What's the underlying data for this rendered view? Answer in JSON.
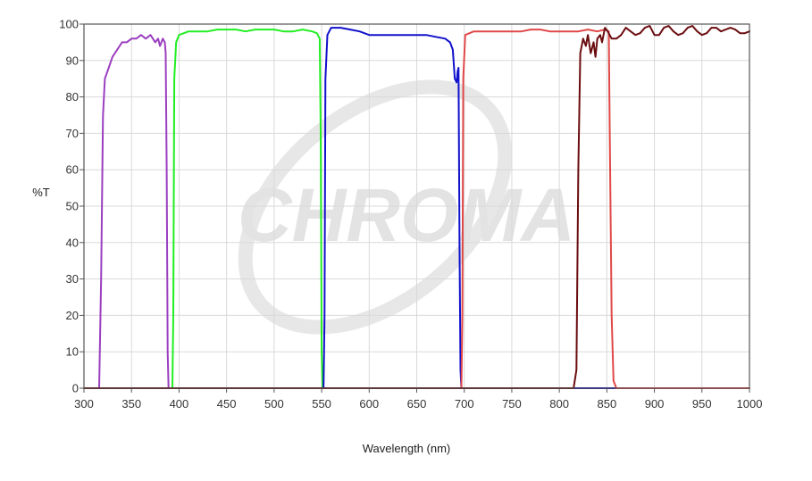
{
  "chart_data": {
    "type": "line",
    "title": "",
    "xlabel": "Wavelength (nm)",
    "ylabel": "%T",
    "xlim": [
      300,
      1000
    ],
    "ylim": [
      0,
      100
    ],
    "x_ticks": [
      300,
      350,
      400,
      450,
      500,
      550,
      600,
      650,
      700,
      750,
      800,
      850,
      900,
      950,
      1000
    ],
    "y_ticks": [
      0,
      10,
      20,
      30,
      40,
      50,
      60,
      70,
      80,
      90,
      100
    ],
    "grid": true,
    "legend": "none",
    "watermark": "CHROMA",
    "series": [
      {
        "color": "#9b3fc0",
        "points": [
          [
            300,
            0
          ],
          [
            316,
            0
          ],
          [
            318,
            30
          ],
          [
            320,
            75
          ],
          [
            322,
            85
          ],
          [
            326,
            88
          ],
          [
            330,
            91
          ],
          [
            335,
            93
          ],
          [
            340,
            95
          ],
          [
            345,
            95
          ],
          [
            350,
            96
          ],
          [
            355,
            96
          ],
          [
            360,
            97
          ],
          [
            365,
            96
          ],
          [
            370,
            97
          ],
          [
            375,
            95
          ],
          [
            378,
            96
          ],
          [
            380,
            94
          ],
          [
            383,
            96
          ],
          [
            385,
            95
          ],
          [
            386,
            92
          ],
          [
            387,
            60
          ],
          [
            388,
            10
          ],
          [
            389,
            0
          ],
          [
            550,
            0
          ]
        ]
      },
      {
        "color": "#22ee22",
        "points": [
          [
            380,
            0
          ],
          [
            393,
            0
          ],
          [
            394,
            20
          ],
          [
            395,
            85
          ],
          [
            397,
            95
          ],
          [
            400,
            97
          ],
          [
            410,
            98
          ],
          [
            420,
            98
          ],
          [
            430,
            98
          ],
          [
            440,
            98.5
          ],
          [
            450,
            98.5
          ],
          [
            460,
            98.5
          ],
          [
            470,
            98
          ],
          [
            480,
            98.5
          ],
          [
            490,
            98.5
          ],
          [
            500,
            98.5
          ],
          [
            510,
            98
          ],
          [
            520,
            98
          ],
          [
            530,
            98.5
          ],
          [
            540,
            98
          ],
          [
            545,
            97.5
          ],
          [
            548,
            96
          ],
          [
            549,
            70
          ],
          [
            550,
            10
          ],
          [
            551,
            0
          ],
          [
            700,
            0
          ]
        ]
      },
      {
        "color": "#1111cc",
        "points": [
          [
            400,
            0
          ],
          [
            552,
            0
          ],
          [
            553,
            20
          ],
          [
            554,
            85
          ],
          [
            556,
            97
          ],
          [
            560,
            99
          ],
          [
            570,
            99
          ],
          [
            580,
            98.5
          ],
          [
            590,
            98
          ],
          [
            600,
            97
          ],
          [
            610,
            97
          ],
          [
            620,
            97
          ],
          [
            630,
            97
          ],
          [
            640,
            97
          ],
          [
            650,
            97
          ],
          [
            660,
            97
          ],
          [
            670,
            96.5
          ],
          [
            680,
            96
          ],
          [
            685,
            95
          ],
          [
            688,
            93
          ],
          [
            690,
            85
          ],
          [
            692,
            84
          ],
          [
            693,
            87
          ],
          [
            694,
            88
          ],
          [
            695,
            40
          ],
          [
            696,
            5
          ],
          [
            697,
            0
          ],
          [
            860,
            0
          ]
        ]
      },
      {
        "color": "#e04848",
        "points": [
          [
            650,
            0
          ],
          [
            697,
            0
          ],
          [
            698,
            20
          ],
          [
            699,
            85
          ],
          [
            701,
            97
          ],
          [
            710,
            98
          ],
          [
            720,
            98
          ],
          [
            730,
            98
          ],
          [
            740,
            98
          ],
          [
            750,
            98
          ],
          [
            760,
            98
          ],
          [
            770,
            98.5
          ],
          [
            780,
            98.5
          ],
          [
            790,
            98
          ],
          [
            800,
            98
          ],
          [
            810,
            98
          ],
          [
            820,
            98
          ],
          [
            830,
            98.5
          ],
          [
            840,
            98
          ],
          [
            848,
            98.5
          ],
          [
            852,
            98
          ],
          [
            853,
            70
          ],
          [
            855,
            20
          ],
          [
            857,
            2
          ],
          [
            860,
            0
          ],
          [
            1000,
            0
          ]
        ]
      },
      {
        "color": "#6b0d10",
        "points": [
          [
            300,
            0
          ],
          [
            750,
            0
          ],
          [
            815,
            0
          ],
          [
            818,
            5
          ],
          [
            820,
            60
          ],
          [
            822,
            92
          ],
          [
            825,
            96
          ],
          [
            828,
            94
          ],
          [
            830,
            97
          ],
          [
            833,
            92
          ],
          [
            836,
            95
          ],
          [
            838,
            91
          ],
          [
            840,
            96
          ],
          [
            843,
            97
          ],
          [
            845,
            95
          ],
          [
            848,
            99
          ],
          [
            851,
            98
          ],
          [
            855,
            96
          ],
          [
            860,
            96
          ],
          [
            865,
            97
          ],
          [
            870,
            99
          ],
          [
            875,
            98
          ],
          [
            880,
            97
          ],
          [
            885,
            97.5
          ],
          [
            890,
            99
          ],
          [
            895,
            99.5
          ],
          [
            900,
            97
          ],
          [
            905,
            97
          ],
          [
            910,
            99
          ],
          [
            915,
            99.5
          ],
          [
            920,
            98
          ],
          [
            925,
            97
          ],
          [
            930,
            97.5
          ],
          [
            935,
            99
          ],
          [
            940,
            99.5
          ],
          [
            945,
            98
          ],
          [
            950,
            97
          ],
          [
            955,
            97.5
          ],
          [
            960,
            99
          ],
          [
            965,
            99
          ],
          [
            970,
            98
          ],
          [
            975,
            98.5
          ],
          [
            980,
            99
          ],
          [
            985,
            98.5
          ],
          [
            990,
            97.5
          ],
          [
            995,
            97.5
          ],
          [
            1000,
            98
          ]
        ]
      }
    ]
  }
}
